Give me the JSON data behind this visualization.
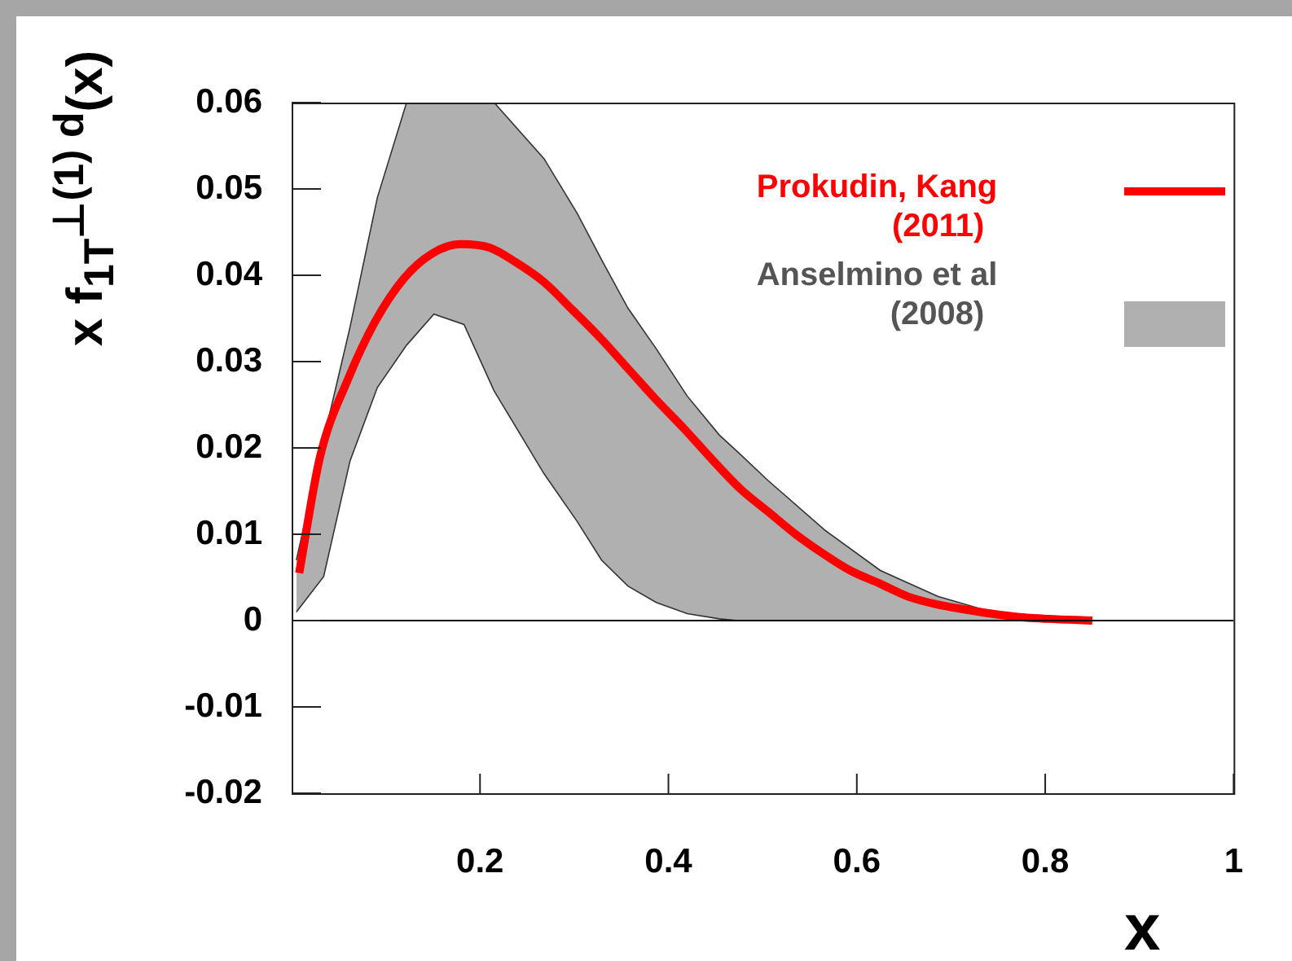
{
  "chart_data": {
    "type": "line",
    "ylabel": "x f$_{1T}$$^{⊥(1) d}$(x)",
    "xlabel": "x",
    "xlim": [
      0,
      1
    ],
    "xticks": [
      0.2,
      0.4,
      0.6,
      0.8,
      1
    ],
    "ylim": [
      -0.02,
      0.06
    ],
    "yticks": [
      -0.02,
      -0.01,
      0,
      0.01,
      0.02,
      0.03,
      0.04,
      0.05,
      0.06
    ],
    "grid": false,
    "legend": "top right",
    "marker": "none",
    "line_style": "solid",
    "ref_lines": [
      {
        "axis": "y",
        "value": 0,
        "color": "#000000"
      }
    ],
    "series": [
      {
        "name": "Prokudin, Kang (2011)",
        "type": "line",
        "color": "#ff0000",
        "x": [
          0.008,
          0.03,
          0.06,
          0.089,
          0.119,
          0.149,
          0.179,
          0.21,
          0.238,
          0.268,
          0.298,
          0.328,
          0.357,
          0.386,
          0.416,
          0.446,
          0.476,
          0.506,
          0.535,
          0.565,
          0.593,
          0.624,
          0.654,
          0.684,
          0.714,
          0.743,
          0.773,
          0.803,
          0.85
        ],
        "values": [
          0.0055,
          0.0189,
          0.028,
          0.0347,
          0.0396,
          0.0425,
          0.0436,
          0.0432,
          0.0415,
          0.0392,
          0.036,
          0.0327,
          0.0292,
          0.0257,
          0.0223,
          0.0187,
          0.0153,
          0.0126,
          0.01,
          0.0077,
          0.0058,
          0.0043,
          0.0028,
          0.0019,
          0.0013,
          0.0008,
          0.0004,
          0.0002,
          0
        ]
      },
      {
        "name": "Anselmino et al (2008)",
        "type": "area",
        "color": "#b0b0b0",
        "x": [
          0.005,
          0.034,
          0.062,
          0.091,
          0.122,
          0.151,
          0.183,
          0.215,
          0.268,
          0.303,
          0.329,
          0.357,
          0.387,
          0.42,
          0.454,
          0.474,
          0.506,
          0.567,
          0.625,
          0.686,
          0.746,
          0.805,
          0.85
        ],
        "values": [
          0.007,
          0.021,
          0.034,
          0.049,
          0.06,
          0.06,
          0.06,
          0.06,
          0.0535,
          0.0472,
          0.0418,
          0.0362,
          0.0315,
          0.026,
          0.0215,
          0.0195,
          0.0162,
          0.0104,
          0.0058,
          0.0028,
          0.0009,
          0.0002,
          0
        ]
      },
      {
        "type": "area",
        "color": "#ffffff",
        "x": [
          0.005,
          0.034,
          0.062,
          0.091,
          0.122,
          0.151,
          0.183,
          0.215,
          0.268,
          0.303,
          0.329,
          0.357,
          0.387,
          0.42,
          0.454,
          0.474,
          0.506,
          0.567,
          0.625,
          0.686,
          0.746,
          0.805,
          0.85
        ],
        "values": [
          0.001,
          0.0051,
          0.0185,
          0.027,
          0.0319,
          0.0355,
          0.0343,
          0.0266,
          0.017,
          0.0115,
          0.007,
          0.004,
          0.0021,
          0.0008,
          0.0002,
          0,
          0,
          0,
          0,
          0,
          0,
          0,
          0
        ]
      }
    ]
  }
}
